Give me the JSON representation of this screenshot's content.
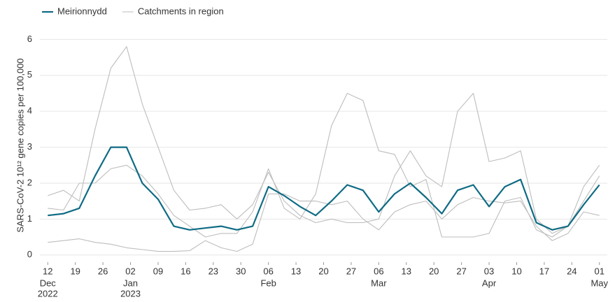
{
  "chart_data": {
    "type": "line",
    "y_label": "SARS-CoV-2 10¹² gene copies per 100,000",
    "x": [
      "2022-12-12",
      "2022-12-16",
      "2022-12-20",
      "2022-12-24",
      "2022-12-28",
      "2023-01-01",
      "2023-01-05",
      "2023-01-09",
      "2023-01-13",
      "2023-01-17",
      "2023-01-21",
      "2023-01-25",
      "2023-01-29",
      "2023-02-02",
      "2023-02-06",
      "2023-02-10",
      "2023-02-14",
      "2023-02-18",
      "2023-02-22",
      "2023-02-26",
      "2023-03-02",
      "2023-03-06",
      "2023-03-10",
      "2023-03-14",
      "2023-03-18",
      "2023-03-22",
      "2023-03-26",
      "2023-03-30",
      "2023-04-03",
      "2023-04-07",
      "2023-04-11",
      "2023-04-15",
      "2023-04-19",
      "2023-04-23",
      "2023-04-27",
      "2023-05-01"
    ],
    "series": [
      {
        "color": "#bdbdbd",
        "values": [
          1.65,
          1.8,
          1.5,
          3.5,
          5.2,
          5.8,
          4.2,
          3.0,
          1.8,
          1.25,
          1.3,
          1.4,
          1.0,
          1.4,
          2.3,
          1.5,
          1.1,
          0.9,
          1.0,
          0.9,
          0.9,
          1.0,
          2.2,
          2.9,
          2.2,
          1.9,
          4.0,
          4.5,
          2.6,
          2.7,
          2.9,
          1.0,
          0.6,
          0.8,
          1.5,
          2.2
        ]
      },
      {
        "color": "#bdbdbd",
        "values": [
          1.3,
          1.25,
          2.0,
          2.0,
          2.4,
          2.5,
          2.2,
          1.7,
          1.1,
          0.8,
          0.5,
          0.6,
          0.6,
          1.2,
          2.4,
          1.3,
          1.0,
          1.7,
          3.6,
          4.5,
          4.3,
          2.9,
          2.8,
          1.9,
          2.1,
          0.5,
          0.5,
          0.5,
          0.6,
          1.5,
          1.6,
          0.7,
          0.5,
          0.8,
          1.9,
          2.5
        ]
      },
      {
        "name": "Catchments in region",
        "color": "#bdbdbd",
        "values": [
          0.35,
          0.4,
          0.45,
          0.35,
          0.3,
          0.2,
          0.15,
          0.1,
          0.1,
          0.12,
          0.4,
          0.2,
          0.1,
          0.3,
          1.7,
          1.7,
          1.5,
          1.5,
          1.4,
          1.5,
          1.0,
          0.7,
          1.2,
          1.4,
          1.5,
          1.0,
          1.4,
          1.6,
          1.5,
          1.45,
          1.5,
          0.8,
          0.4,
          0.6,
          1.2,
          1.1
        ]
      },
      {
        "name": "Meirionnydd",
        "color": "#0f6b84",
        "values": [
          1.1,
          1.15,
          1.3,
          2.2,
          3.0,
          3.0,
          2.0,
          1.55,
          0.8,
          0.7,
          0.75,
          0.8,
          0.7,
          0.8,
          1.9,
          1.65,
          1.35,
          1.1,
          1.5,
          1.95,
          1.8,
          1.2,
          1.7,
          2.0,
          1.6,
          1.15,
          1.8,
          1.95,
          1.35,
          1.9,
          2.1,
          0.9,
          0.7,
          0.8,
          1.4,
          1.95
        ]
      }
    ],
    "legend_order": [
      3,
      2
    ],
    "xlim": [
      "2022-12-10",
      "2023-05-03"
    ],
    "xticks": [
      {
        "value": "2022-12-12",
        "label": "12"
      },
      {
        "value": "2022-12-19",
        "label": "19"
      },
      {
        "value": "2022-12-26",
        "label": "26"
      },
      {
        "value": "2023-01-02",
        "label": "02"
      },
      {
        "value": "2023-01-09",
        "label": "09"
      },
      {
        "value": "2023-01-16",
        "label": "16"
      },
      {
        "value": "2023-01-23",
        "label": "23"
      },
      {
        "value": "2023-01-30",
        "label": "30"
      },
      {
        "value": "2023-02-06",
        "label": "06"
      },
      {
        "value": "2023-02-13",
        "label": "13"
      },
      {
        "value": "2023-02-20",
        "label": "20"
      },
      {
        "value": "2023-02-27",
        "label": "27"
      },
      {
        "value": "2023-03-06",
        "label": "06"
      },
      {
        "value": "2023-03-13",
        "label": "13"
      },
      {
        "value": "2023-03-20",
        "label": "20"
      },
      {
        "value": "2023-03-27",
        "label": "27"
      },
      {
        "value": "2023-04-03",
        "label": "03"
      },
      {
        "value": "2023-04-10",
        "label": "10"
      },
      {
        "value": "2023-04-17",
        "label": "17"
      },
      {
        "value": "2023-04-24",
        "label": "24"
      },
      {
        "value": "2023-05-01",
        "label": "01"
      }
    ],
    "xtick_months": [
      {
        "value": "2022-12-12",
        "label": "Dec"
      },
      {
        "value": "2023-01-02",
        "label": "Jan"
      },
      {
        "value": "2023-02-06",
        "label": "Feb"
      },
      {
        "value": "2023-03-06",
        "label": "Mar"
      },
      {
        "value": "2023-04-03",
        "label": "Apr"
      },
      {
        "value": "2023-05-01",
        "label": "May"
      }
    ],
    "xtick_years": [
      {
        "value": "2022-12-12",
        "label": "2022"
      },
      {
        "value": "2023-01-02",
        "label": "2023"
      }
    ],
    "ylim": [
      -0.2,
      6.3
    ],
    "yticks": [
      0,
      1,
      2,
      3,
      4,
      5,
      6
    ],
    "grid": true
  }
}
